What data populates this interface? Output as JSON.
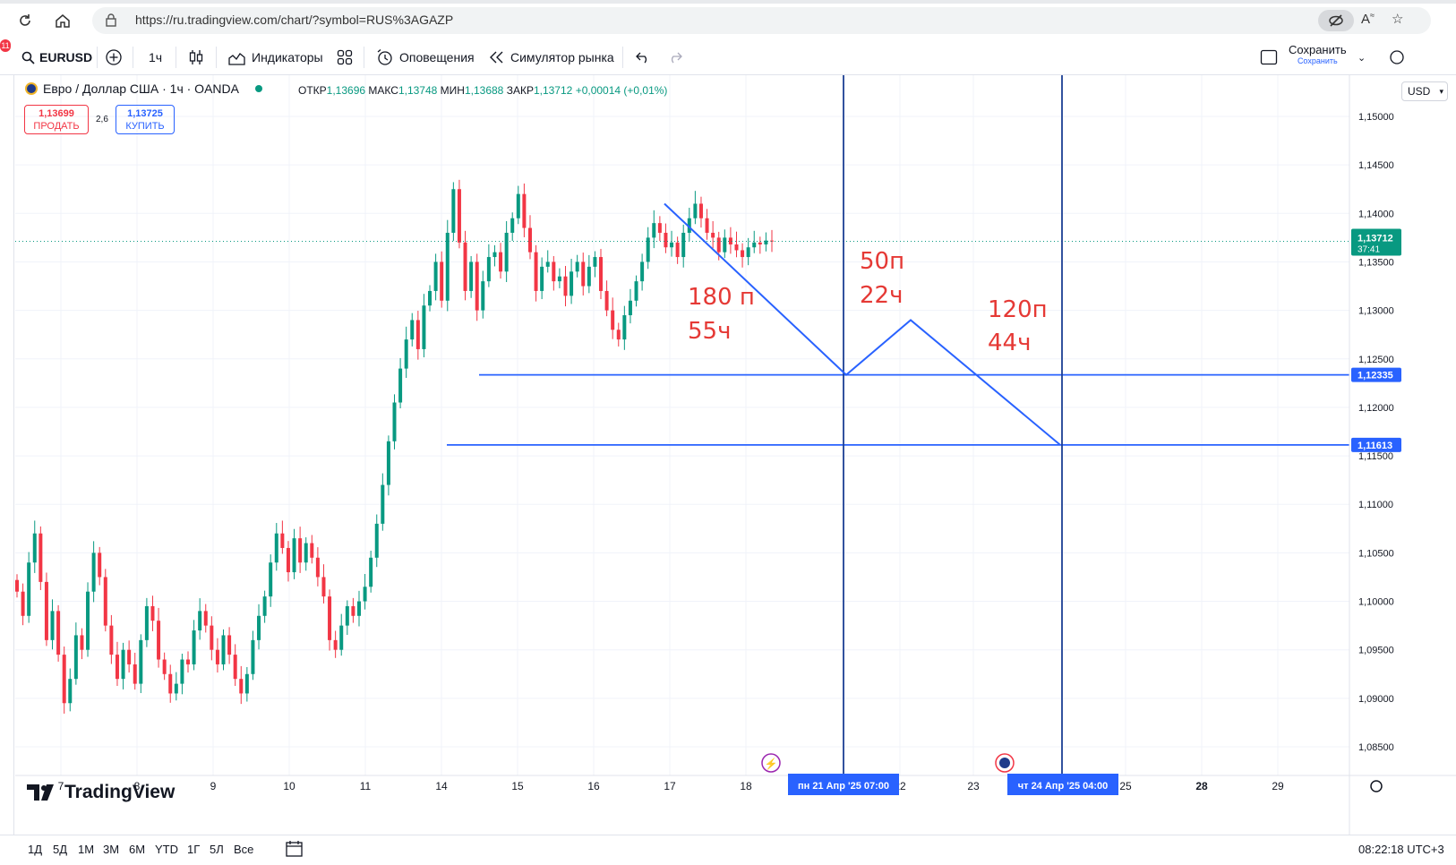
{
  "browser": {
    "url": "https://ru.tradingview.com/chart/?symbol=RUS%3AGAZP"
  },
  "toolbar": {
    "symbol": "EURUSD",
    "interval": "1ч",
    "indicators_label": "Индикаторы",
    "alerts_label": "Оповещения",
    "replay_label": "Симулятор рынка",
    "save_label": "Сохранить",
    "save_sublabel": "Сохранить",
    "notification_count": "11"
  },
  "legend": {
    "title": "Евро / Доллар США · 1ч · OANDA",
    "open_label": "ОТКР",
    "open": "1,13696",
    "high_label": "МАКС",
    "high": "1,13748",
    "low_label": "МИН",
    "low": "1,13688",
    "close_label": "ЗАКР",
    "close": "1,13712",
    "change": "+0,00014 (+0,01%)"
  },
  "trade": {
    "sell_price": "1,13699",
    "sell_label": "ПРОДАТЬ",
    "spread": "2,6",
    "buy_price": "1,13725",
    "buy_label": "КУПИТЬ"
  },
  "currency": "USD",
  "current_price": "1,13712",
  "countdown": "37:41",
  "levels": {
    "upper": "1,12335",
    "lower": "1,11613"
  },
  "annotations": {
    "a1_line1": "180 п",
    "a1_line2": "55ч",
    "a2_line1": "50п",
    "a2_line2": "22ч",
    "a3_line1": "120п",
    "a3_line2": "44ч"
  },
  "crosshair_labels": {
    "first": "пн 21 Апр '25   07:00",
    "second": "чт 24 Апр '25   04:00"
  },
  "logo": "TradingView",
  "ranges": [
    "1Д",
    "5Д",
    "1М",
    "3М",
    "6М",
    "YTD",
    "1Г",
    "5Л",
    "Все"
  ],
  "clock": "08:22:18 UTC+3",
  "colors": {
    "up": "#089981",
    "down": "#f23645",
    "drawing": "#2962ff",
    "annotation": "#e53935"
  },
  "chart_data": {
    "type": "candlestick",
    "symbol": "EURUSD",
    "y_ticks": [
      "1,15000",
      "1,14500",
      "1,14000",
      "1,13500",
      "1,13000",
      "1,12500",
      "1,12000",
      "1,11500",
      "1,11000",
      "1,10500",
      "1,10000",
      "1,09500",
      "1,09000",
      "1,08500"
    ],
    "x_ticks": [
      "7",
      "8",
      "9",
      "10",
      "11",
      "14",
      "15",
      "16",
      "17",
      "18",
      "22",
      "23",
      "25",
      "28",
      "29"
    ],
    "bold_x_ticks": [
      "28"
    ],
    "ylim": [
      1.082,
      1.152
    ],
    "candles_close": [
      1.101,
      1.0985,
      1.104,
      1.107,
      1.102,
      1.096,
      1.099,
      1.0945,
      1.0895,
      1.092,
      1.0965,
      1.095,
      1.101,
      1.105,
      1.1025,
      1.0975,
      1.0945,
      1.092,
      1.095,
      1.0935,
      1.0915,
      1.096,
      1.0995,
      1.098,
      1.094,
      1.0925,
      1.0905,
      1.0915,
      1.094,
      1.0935,
      1.097,
      1.099,
      1.0975,
      1.095,
      1.0935,
      1.0965,
      1.0945,
      1.092,
      1.0905,
      1.0925,
      1.096,
      1.0985,
      1.1005,
      1.104,
      1.107,
      1.1055,
      1.103,
      1.1065,
      1.104,
      1.106,
      1.1045,
      1.1025,
      1.1005,
      1.096,
      1.095,
      1.0975,
      1.0995,
      1.0985,
      1.1,
      1.1015,
      1.1045,
      1.108,
      1.112,
      1.1165,
      1.1205,
      1.124,
      1.127,
      1.129,
      1.126,
      1.1305,
      1.132,
      1.135,
      1.131,
      1.138,
      1.1425,
      1.137,
      1.132,
      1.135,
      1.13,
      1.133,
      1.1355,
      1.136,
      1.134,
      1.138,
      1.1395,
      1.142,
      1.1385,
      1.136,
      1.132,
      1.1345,
      1.135,
      1.133,
      1.1335,
      1.1315,
      1.134,
      1.135,
      1.1325,
      1.1345,
      1.1355,
      1.132,
      1.13,
      1.128,
      1.127,
      1.1295,
      1.131,
      1.133,
      1.135,
      1.1375,
      1.139,
      1.138,
      1.1365,
      1.137,
      1.1355,
      1.138,
      1.1395,
      1.141,
      1.1395,
      1.138,
      1.1375,
      1.136,
      1.1375,
      1.1368,
      1.1362,
      1.1355,
      1.1365,
      1.137,
      1.1368,
      1.1372,
      1.1371
    ],
    "candles_start_date": "7",
    "candles_end_date": "18",
    "current_price": 1.13712,
    "horizontal_levels": [
      1.12335,
      1.11613
    ],
    "drawing_path": [
      [
        1.141,
        "17"
      ],
      [
        1.12335,
        "пн 21 Апр '25 07:00"
      ],
      [
        1.129,
        "22"
      ],
      [
        1.11613,
        "чт 24 Апр '25 04:00"
      ]
    ]
  }
}
